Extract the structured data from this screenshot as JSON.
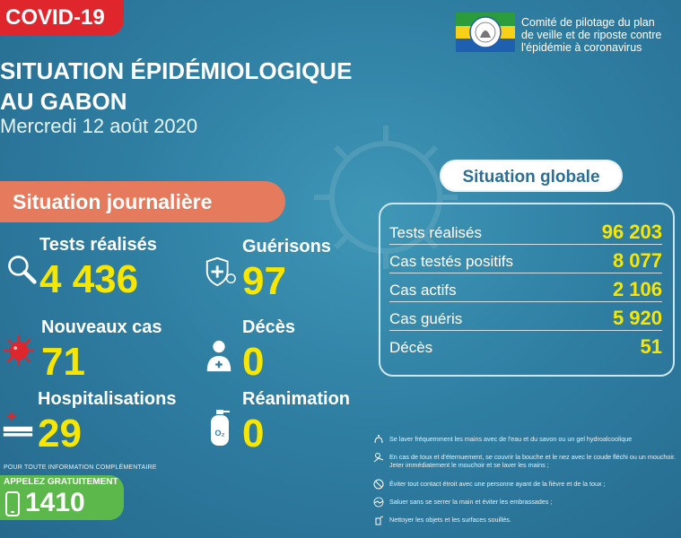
{
  "header": {
    "tag": "COVID-19",
    "title_line1": "SITUATION ÉPIDÉMIOLOGIQUE",
    "title_line2": "AU GABON",
    "date": "Mercredi 12 août 2020"
  },
  "committee": {
    "line1": "Comité de pilotage du plan",
    "line2": "de veille et de riposte contre",
    "line3": "l'épidémie à coronavirus"
  },
  "daily": {
    "heading": "Situation journalière",
    "items": [
      {
        "label": "Tests réalisés",
        "value": "4 436"
      },
      {
        "label": "Guérisons",
        "value": "97"
      },
      {
        "label": "Nouveaux cas",
        "value": "71"
      },
      {
        "label": "Décès",
        "value": "0"
      },
      {
        "label": "Hospitalisations",
        "value": "29"
      },
      {
        "label": "Réanimation",
        "value": "0"
      }
    ]
  },
  "global": {
    "heading": "Situation globale",
    "rows": [
      {
        "label": "Tests réalisés",
        "value": "96 203"
      },
      {
        "label": "Cas testés positifs",
        "value": "8 077"
      },
      {
        "label": "Cas actifs",
        "value": "2 106"
      },
      {
        "label": "Cas guéris",
        "value": "5 920"
      },
      {
        "label": "Décès",
        "value": "51"
      }
    ]
  },
  "tips": [
    "Se laver fréquemment les mains avec de l'eau et du savon ou un gel hydroalcoolique",
    "En cas de toux et d'éternuement, se couvrir la bouche et le nez avec le coude fléchi ou un mouchoir. Jeter immédiatement le mouchoir et se laver les mains ;",
    "Éviter tout contact étroit avec une personne ayant de la fièvre et de la toux ;",
    "Saluer sans se serrer la main et éviter les embrassades ;",
    "Nettoyer les objets et les surfaces souillés."
  ],
  "contact": {
    "info": "POUR TOUTE INFORMATION COMPLÉMENTAIRE",
    "call": "APPELEZ GRATUITEMENT",
    "number": "1410"
  },
  "colors": {
    "accent_yellow": "#f7e600",
    "tag_red": "#e0262d",
    "pill_orange": "#e57a5c",
    "call_green": "#5cb84a"
  }
}
